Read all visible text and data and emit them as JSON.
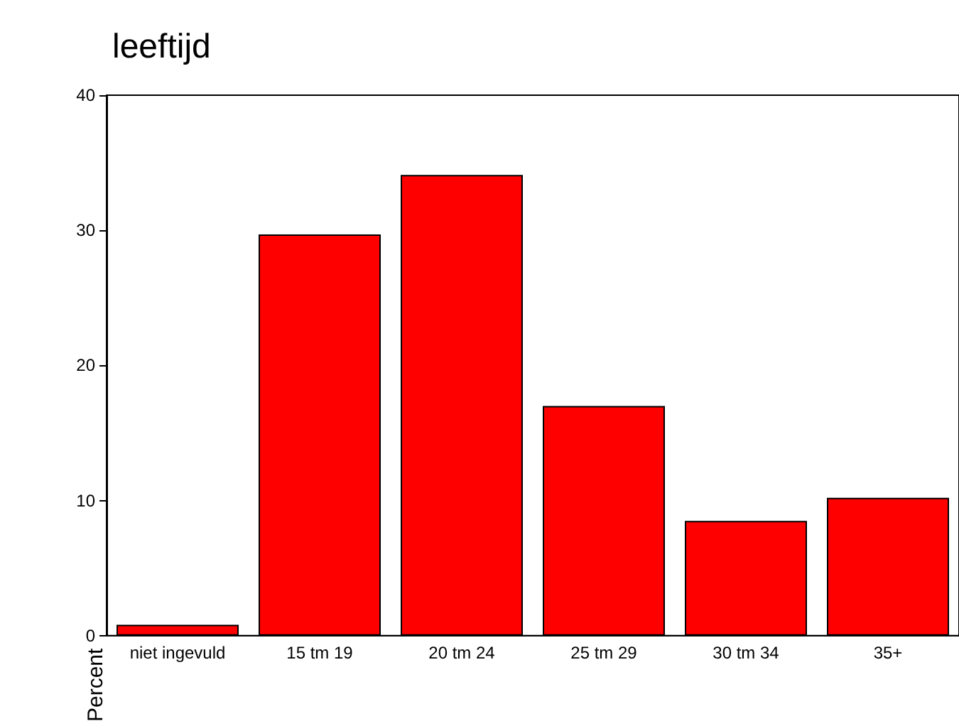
{
  "chart_data": {
    "type": "bar",
    "title": "leeftijd",
    "ylabel": "Percent",
    "categories": [
      "niet ingevuld",
      "15 tm 19",
      "20 tm 24",
      "25 tm 29",
      "30 tm 34",
      "35+"
    ],
    "values": [
      0.8,
      29.7,
      34.1,
      17.0,
      8.5,
      10.2
    ],
    "color": "#ff0000",
    "ylim": [
      0,
      40
    ],
    "yticks": [
      0,
      10,
      20,
      30,
      40
    ],
    "grid": false
  }
}
